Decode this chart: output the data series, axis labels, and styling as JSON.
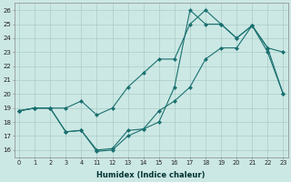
{
  "xlabel": "Humidex (Indice chaleur)",
  "bg_color": "#cce8e4",
  "grid_color": "#aaccc8",
  "line_color": "#1a7070",
  "xtick_positions": [
    0,
    1,
    2,
    3,
    4,
    11,
    12,
    13,
    14,
    15,
    16,
    17,
    18,
    19,
    20,
    21,
    22,
    23
  ],
  "xtick_labels": [
    "0",
    "1",
    "2",
    "3",
    "4",
    "11",
    "12",
    "13",
    "14",
    "15",
    "16",
    "17",
    "18",
    "19",
    "20",
    "21",
    "22",
    "23"
  ],
  "yticks": [
    16,
    17,
    18,
    19,
    20,
    21,
    22,
    23,
    24,
    25,
    26
  ],
  "xlim": [
    -0.3,
    23.3
  ],
  "ylim": [
    15.5,
    26.5
  ],
  "line1_x": [
    0,
    1,
    2,
    3,
    4,
    11,
    12,
    13,
    14,
    15,
    16,
    17,
    18,
    19,
    20,
    21,
    22,
    23
  ],
  "line1_y": [
    18.8,
    19.0,
    19.0,
    17.3,
    17.4,
    16.0,
    16.1,
    17.4,
    17.5,
    18.8,
    19.5,
    20.5,
    22.5,
    23.3,
    23.3,
    24.9,
    23.3,
    20.0
  ],
  "line2_x": [
    0,
    1,
    2,
    3,
    4,
    11,
    12,
    13,
    14,
    15,
    16,
    17,
    18,
    19,
    20,
    21,
    22,
    23
  ],
  "line2_y": [
    18.8,
    19.0,
    19.0,
    19.0,
    19.5,
    18.5,
    19.0,
    20.5,
    21.5,
    22.5,
    22.5,
    25.0,
    26.0,
    25.0,
    24.0,
    24.9,
    23.3,
    23.0
  ],
  "line3_x": [
    0,
    1,
    2,
    3,
    4,
    11,
    12,
    13,
    14,
    15,
    16,
    17,
    18,
    19,
    20,
    21,
    22,
    23
  ],
  "line3_y": [
    18.8,
    19.0,
    19.0,
    17.3,
    17.4,
    15.9,
    16.0,
    17.0,
    17.5,
    18.0,
    20.5,
    26.0,
    25.0,
    25.0,
    24.0,
    24.9,
    23.0,
    20.0
  ]
}
